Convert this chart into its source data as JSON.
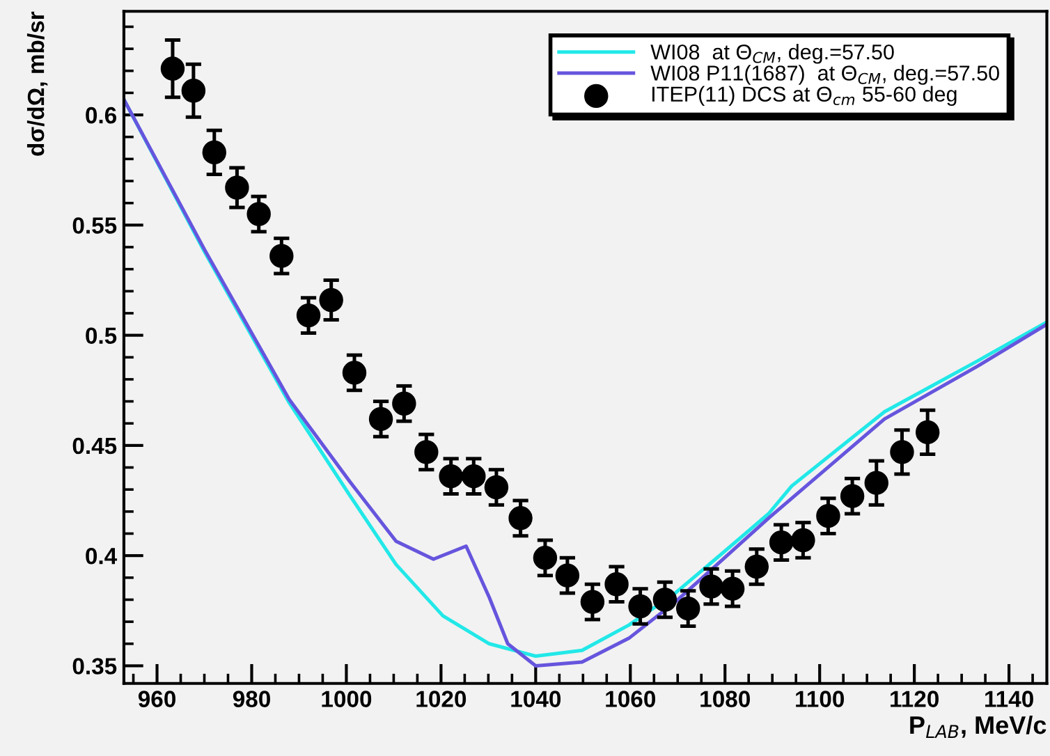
{
  "chart_data": {
    "type": "line",
    "xlabel": "P$_{LAB}$, MeV/c",
    "ylabel": "dσ/dΩ, mb/sr",
    "xlim": [
      953,
      1148
    ],
    "ylim": [
      0.342,
      0.647
    ],
    "xticks": [
      960,
      980,
      1000,
      1020,
      1040,
      1060,
      1080,
      1100,
      1120,
      1140
    ],
    "yticks": [
      0.35,
      {
        "value": 0.4,
        "label": "0.4"
      },
      0.45,
      {
        "value": 0.5,
        "label": "0.5"
      },
      0.55,
      {
        "value": 0.6,
        "label": "0.6"
      }
    ],
    "grid": false,
    "legend": "top right",
    "series": [
      {
        "name": "WI08  at Θ$_{CM}$, deg.=57.50",
        "color": "#22e8e8",
        "marker": "none",
        "line_style": "solid",
        "x": [
          953,
          970,
          987.9,
          1000.7,
          1010.5,
          1020.4,
          1030.2,
          1040,
          1049.8,
          1059.7,
          1069.5,
          1079.4,
          1089.2,
          1094.1,
          1113.7,
          1133.4,
          1148
        ],
        "values": [
          0.607,
          0.538,
          0.4695,
          0.4274,
          0.396,
          0.3727,
          0.36,
          0.3544,
          0.357,
          0.3685,
          0.383,
          0.401,
          0.419,
          0.4316,
          0.4653,
          0.4884,
          0.506
        ]
      },
      {
        "name": "WI08 P11(1687)  at Θ$_{CM}$, deg.=57.50",
        "color": "#6655dd",
        "marker": "none",
        "line_style": "solid",
        "x": [
          953,
          970,
          987.9,
          1000.7,
          1010.5,
          1018.4,
          1025.3,
          1030.2,
          1034.1,
          1040,
          1049.8,
          1059.7,
          1069.5,
          1079.4,
          1089.2,
          1113.7,
          1133.4,
          1148
        ],
        "values": [
          0.607,
          0.539,
          0.471,
          0.4337,
          0.4065,
          0.3984,
          0.4043,
          0.381,
          0.36,
          0.35,
          0.3517,
          0.3625,
          0.379,
          0.398,
          0.417,
          0.462,
          0.486,
          0.505
        ]
      },
      {
        "name": "ITEP(11) DCS at Θ$_{cm}$ 55-60 deg",
        "color": "#000000",
        "type": "scatter",
        "marker": "circle",
        "x": [
          963.3,
          967.7,
          972.1,
          976.9,
          981.5,
          986.3,
          992.0,
          996.8,
          1001.7,
          1007.3,
          1012.2,
          1016.9,
          1022.1,
          1026.9,
          1031.7,
          1036.8,
          1042.0,
          1046.7,
          1052.0,
          1057.1,
          1062.1,
          1067.3,
          1072.2,
          1077.1,
          1081.6,
          1086.7,
          1091.9,
          1096.5,
          1101.8,
          1106.9,
          1112.0,
          1117.4,
          1122.8
        ],
        "values": [
          0.621,
          0.611,
          0.583,
          0.567,
          0.555,
          0.536,
          0.509,
          0.516,
          0.483,
          0.462,
          0.469,
          0.447,
          0.436,
          0.436,
          0.431,
          0.417,
          0.399,
          0.391,
          0.379,
          0.387,
          0.377,
          0.38,
          0.376,
          0.386,
          0.385,
          0.395,
          0.406,
          0.407,
          0.418,
          0.427,
          0.433,
          0.447,
          0.456
        ],
        "errors": [
          0.013,
          0.012,
          0.01,
          0.009,
          0.008,
          0.008,
          0.008,
          0.009,
          0.008,
          0.008,
          0.008,
          0.008,
          0.008,
          0.008,
          0.008,
          0.008,
          0.008,
          0.008,
          0.008,
          0.008,
          0.008,
          0.008,
          0.008,
          0.008,
          0.008,
          0.008,
          0.008,
          0.008,
          0.008,
          0.008,
          0.01,
          0.01,
          0.01
        ]
      }
    ]
  }
}
